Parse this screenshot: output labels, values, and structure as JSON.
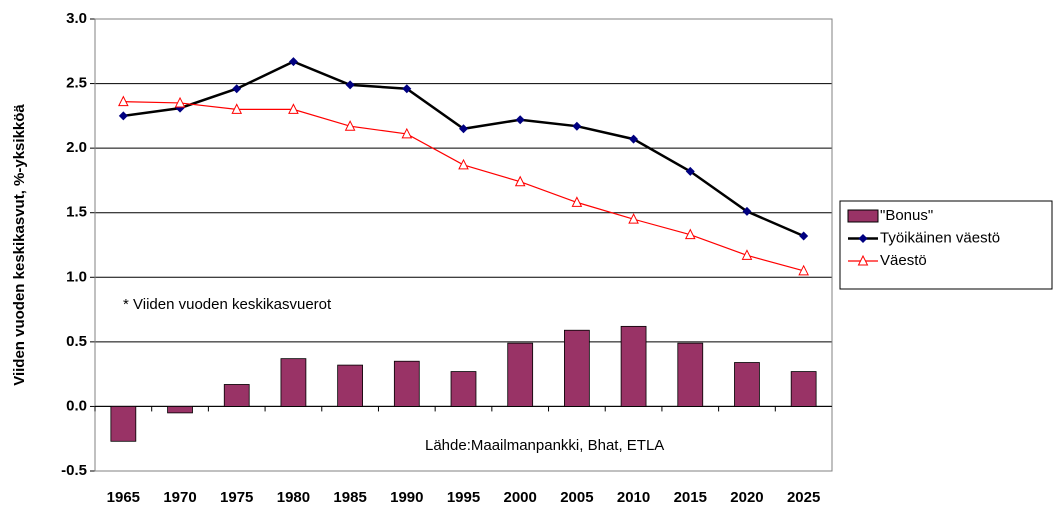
{
  "chart_data": {
    "type": "bar_line",
    "y_label": "Viiden vuoden keskikasvut, %-yksikköä",
    "annotations": [
      "* Viiden vuoden keskikasvuerot",
      "Lähde:Maailmanpankki, Bhat, ETLA"
    ],
    "categories": [
      "1965",
      "1970",
      "1975",
      "1980",
      "1985",
      "1990",
      "1995",
      "2000",
      "2005",
      "2010",
      "2015",
      "2020",
      "2025"
    ],
    "series": [
      {
        "name": "\"Bonus\"",
        "type": "bar",
        "color": "#993366",
        "values": [
          -0.27,
          -0.05,
          0.17,
          0.37,
          0.32,
          0.35,
          0.27,
          0.49,
          0.59,
          0.62,
          0.49,
          0.34,
          0.27
        ]
      },
      {
        "name": "Työikäinen väestö",
        "type": "line",
        "marker": "diamond",
        "color": "#000000",
        "marker_color": "#000080",
        "values": [
          2.25,
          2.31,
          2.46,
          2.67,
          2.49,
          2.46,
          2.15,
          2.22,
          2.17,
          2.07,
          1.82,
          1.51,
          1.32
        ]
      },
      {
        "name": "Väestö",
        "type": "line",
        "marker": "triangle",
        "color": "#ff0000",
        "values": [
          2.36,
          2.35,
          2.3,
          2.3,
          2.17,
          2.11,
          1.87,
          1.74,
          1.58,
          1.45,
          1.33,
          1.17,
          1.05
        ]
      }
    ],
    "ylim": [
      -0.5,
      3
    ],
    "yticks": [
      {
        "value": -0.5,
        "label": "-0.5"
      },
      {
        "value": 0,
        "label": "0.0"
      },
      {
        "value": 0.5,
        "label": "0.5"
      },
      {
        "value": 1,
        "label": "1.0"
      },
      {
        "value": 1.5,
        "label": "1.5"
      },
      {
        "value": 2,
        "label": "2.0"
      },
      {
        "value": 2.5,
        "label": "2.5"
      },
      {
        "value": 3,
        "label": "3.0"
      }
    ],
    "grid": true,
    "legend": "right"
  }
}
